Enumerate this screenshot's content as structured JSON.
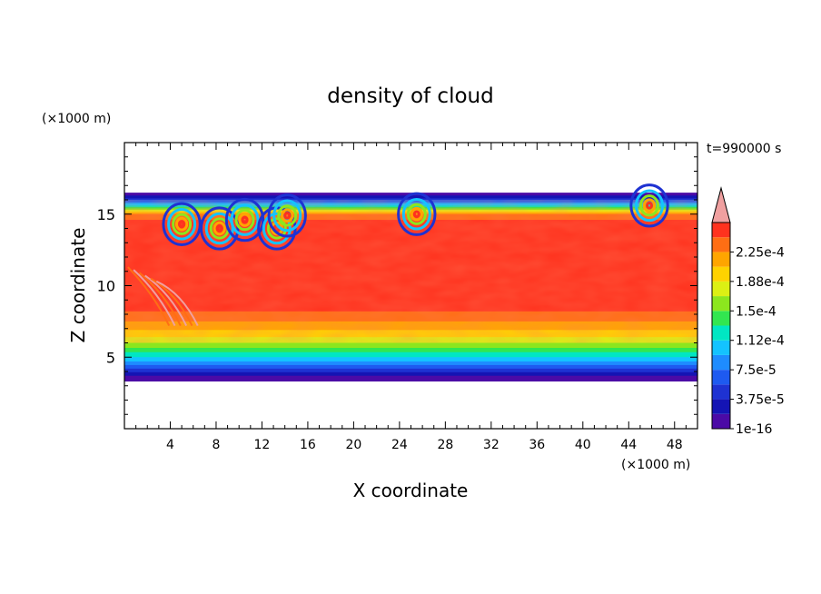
{
  "chart_data": {
    "type": "heatmap",
    "title": "density of cloud",
    "xlabel": "X coordinate",
    "ylabel": "Z coordinate",
    "x_unit": "(×1000 m)",
    "y_unit": "(×1000 m)",
    "time_label": "t=990000 s",
    "xlim": [
      0,
      50
    ],
    "ylim": [
      0,
      20
    ],
    "x_ticks": [
      4,
      8,
      12,
      16,
      20,
      24,
      28,
      32,
      36,
      40,
      44,
      48
    ],
    "x_tick_labels": [
      "4",
      "8",
      "12",
      "16",
      "20",
      "24",
      "28",
      "32",
      "36",
      "40",
      "44",
      "48"
    ],
    "y_ticks": [
      5,
      10,
      15
    ],
    "y_tick_labels": [
      "5",
      "10",
      "15"
    ],
    "cloud_base": 3.3,
    "cloud_top": 16.5,
    "colorbar": {
      "levels": [
        1e-16,
        1.875e-05,
        3.75e-05,
        5.625e-05,
        7.5e-05,
        9.375e-05,
        0.0001125,
        0.00013125,
        0.00015,
        0.00016875,
        0.0001875,
        0.00020625,
        0.000225,
        0.00024375
      ],
      "colors": [
        "#4b0aa6",
        "#1414b4",
        "#1e32d2",
        "#1e5af0",
        "#1e8cff",
        "#14c3ff",
        "#00e6c3",
        "#32e650",
        "#8ce61e",
        "#dcf014",
        "#ffd200",
        "#ffa500",
        "#ff6e14",
        "#ff321e"
      ],
      "extend_color": "#f0a0a0",
      "labels": [
        "1e-16",
        "3.75e-5",
        "7.5e-5",
        "1.12e-4",
        "1.5e-4",
        "1.88e-4",
        "2.25e-4"
      ],
      "label_levels": [
        0,
        2,
        4,
        6,
        8,
        10,
        12
      ]
    }
  }
}
